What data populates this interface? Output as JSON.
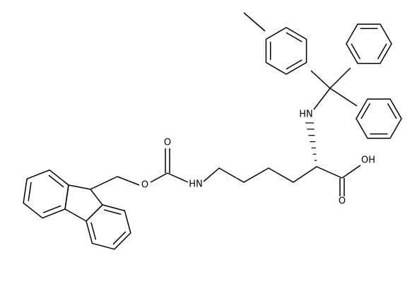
{
  "atoms": [
    {
      "label": "O"
    },
    {
      "label": "O"
    },
    {
      "label": "HN"
    },
    {
      "label": "HN"
    },
    {
      "label": "OH"
    },
    {
      "label": "O"
    }
  ]
}
